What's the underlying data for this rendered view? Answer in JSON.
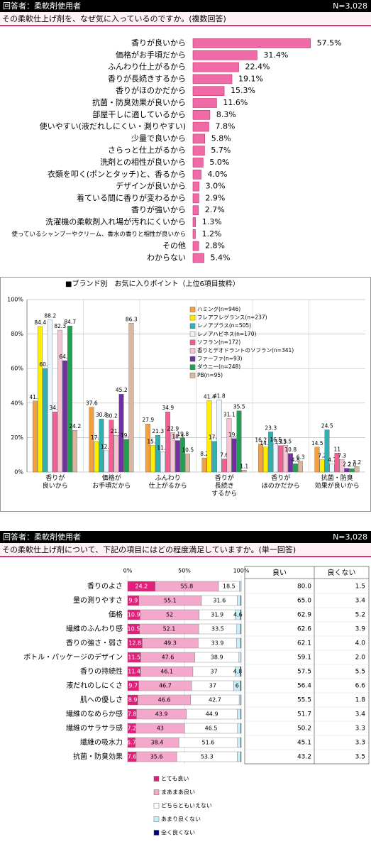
{
  "header1": {
    "respondent": "回答者：柔軟剤使用者",
    "n": "N=3,028",
    "question": "その柔軟仕上げ剤を、なぜ気に入っているのですか。(複数回答)"
  },
  "header2": {
    "respondent": "回答者：柔軟剤使用者",
    "n": "N=3,028",
    "question": "その柔軟仕上げ剤について、下記の項目にはどの程度満足していますか。(単一回答)"
  },
  "chart_data": [
    {
      "type": "hbar",
      "color": "#f06aa8",
      "categories": [
        "香りが良いから",
        "価格がお手頃だから",
        "ふんわり仕上がるから",
        "香りが長続きするから",
        "香りがほのかだから",
        "抗菌・防臭効果が良いから",
        "部屋干しに適しているから",
        "使いやすい(液だれしにくい・測りやすい)",
        "少量で良いから",
        "さらっと仕上がるから",
        "洗剤との相性が良いから",
        "衣類を叩く(ポンとタッチ)と、香るから",
        "デザインが良いから",
        "着ている間に香りが変わるから",
        "香りが強いから",
        "洗濯機の柔軟剤入れ場が汚れにくいから",
        "使っているシャンプーやクリーム、香水の香りと相性が良いから",
        "その他",
        "わからない"
      ],
      "values": [
        57.5,
        31.4,
        22.4,
        19.1,
        15.3,
        11.6,
        8.3,
        7.8,
        5.8,
        5.7,
        5.0,
        4.0,
        3.0,
        2.9,
        2.7,
        1.3,
        1.2,
        2.8,
        5.4
      ],
      "value_labels": [
        "57.5%",
        "31.4%",
        "22.4%",
        "19.1%",
        "15.3%",
        "11.6%",
        "8.3%",
        "7.8%",
        "5.8%",
        "5.7%",
        "5.0%",
        "4.0%",
        "3.0%",
        "2.9%",
        "2.7%",
        "1.3%",
        "1.2%",
        "2.8%",
        "5.4%"
      ]
    },
    {
      "type": "grouped_bar",
      "title": "■ブランド別　お気に入りポイント（上位6項目抜粋）",
      "categories": [
        "香りが\n良いから",
        "価格が\nお手頃だから",
        "ふんわり\n仕上がるから",
        "香りが\n長続き\nするから",
        "香りが\nほのかだから",
        "抗菌・防臭\n効果が良いから"
      ],
      "ylim": [
        0,
        100
      ],
      "yticks": [
        {
          "value": 0,
          "label": "0%"
        },
        {
          "value": 20,
          "label": "20%"
        },
        {
          "value": 40,
          "label": "40%"
        },
        {
          "value": 60,
          "label": "60%"
        },
        {
          "value": 80,
          "label": "80%"
        },
        {
          "value": 100,
          "label": "100%"
        }
      ],
      "grid": true,
      "legend": "top-right",
      "series": [
        {
          "name": "ハミング(n=946)",
          "color": "#f5a040",
          "values": [
            41.2,
            37.6,
            27.9,
            8.2,
            16.2,
            14.5
          ]
        },
        {
          "name": "フレアフレグランス(n=237)",
          "color": "#ffee00",
          "values": [
            84.4,
            17.7,
            15.5,
            41.4,
            14.5,
            7.2
          ]
        },
        {
          "name": "レノアプラス(n=505)",
          "color": "#30b0b0",
          "values": [
            60.1,
            30.8,
            21.3,
            17.8,
            23.3,
            24.5
          ]
        },
        {
          "name": "レノアハピネス(n=170)",
          "color": "#eaf6ff",
          "values": [
            88.2,
            12.4,
            11.8,
            41.8,
            16.5,
            4.7
          ]
        },
        {
          "name": "ソフラン(n=172)",
          "color": "#f06090",
          "values": [
            34.9,
            30.2,
            34.9,
            7.6,
            15.3,
            11.0
          ]
        },
        {
          "name": "香りとデオドラントのソフラン(n=341)",
          "color": "#f4c4d4",
          "values": [
            82.3,
            21.3,
            22.9,
            31.1,
            15.5,
            7.3
          ]
        },
        {
          "name": "ファーファ(n=93)",
          "color": "#7030a0",
          "values": [
            64.6,
            45.2,
            18.3,
            19.4,
            10.8,
            2.2
          ]
        },
        {
          "name": "ダウニー(n=248)",
          "color": "#20a050",
          "values": [
            84.7,
            19.0,
            19.8,
            35.5,
            4.8,
            2.0
          ],
          "value_labels": [
            "84.7",
            "19.0",
            "19.8",
            "35.5",
            "4.8",
            "2.0"
          ]
        },
        {
          "name": "PB(n=95)",
          "color": "#d8b8a0",
          "values": [
            24.2,
            86.3,
            10.5,
            1.1,
            6.3,
            3.2
          ]
        }
      ]
    },
    {
      "type": "stacked_hbar",
      "categories": [
        "香りのよさ",
        "量の測りやすさ",
        "価格",
        "繊維のふんわり感",
        "香りの強さ・弱さ",
        "ボトル・パッケージのデザイン",
        "香りの持続性",
        "液だれのしにくさ",
        "肌への優しさ",
        "繊維のなめらか感",
        "繊維のサラサラ感",
        "繊維の吸水力",
        "抗菌・防臭効果"
      ],
      "xlim": [
        0,
        100
      ],
      "xticks": [
        {
          "value": 0,
          "label": "0%"
        },
        {
          "value": 50,
          "label": "50%"
        },
        {
          "value": 100,
          "label": "100%"
        }
      ],
      "series": [
        {
          "name": "とても良い",
          "color": "#e0207a",
          "values": [
            24.2,
            9.9,
            10.9,
            10.5,
            12.8,
            11.5,
            11.4,
            9.7,
            8.9,
            7.8,
            7.2,
            6.7,
            7.6
          ]
        },
        {
          "name": "まあまあ良い",
          "color": "#f4a8cc",
          "values": [
            55.8,
            55.1,
            52.0,
            52.1,
            49.3,
            47.6,
            46.1,
            46.7,
            46.6,
            43.9,
            43.0,
            38.4,
            35.6
          ]
        },
        {
          "name": "どちらともいえない",
          "color": "#ffffff",
          "values": [
            18.5,
            31.6,
            31.9,
            33.5,
            33.9,
            38.9,
            37.0,
            37.0,
            42.7,
            44.9,
            46.5,
            51.6,
            53.3
          ]
        },
        {
          "name": "あまり良くない",
          "color": "#c8eef8",
          "values": [
            1.3,
            2.9,
            4.6,
            3.4,
            3.5,
            1.8,
            4.8,
            6.0,
            1.5,
            3.0,
            2.9,
            2.9,
            3.1
          ]
        },
        {
          "name": "全く良くない",
          "color": "#000080",
          "values": [
            0.2,
            0.5,
            0.6,
            0.5,
            0.5,
            0.2,
            0.7,
            0.6,
            0.3,
            0.4,
            0.4,
            0.4,
            0.4
          ]
        }
      ],
      "table": {
        "columns": [
          "良い",
          "良くない"
        ],
        "rows": [
          [
            "80.0",
            "1.5"
          ],
          [
            "65.0",
            "3.4"
          ],
          [
            "62.9",
            "5.2"
          ],
          [
            "62.6",
            "3.9"
          ],
          [
            "62.1",
            "4.0"
          ],
          [
            "59.1",
            "2.0"
          ],
          [
            "57.5",
            "5.5"
          ],
          [
            "56.4",
            "6.6"
          ],
          [
            "55.5",
            "1.8"
          ],
          [
            "51.7",
            "3.4"
          ],
          [
            "50.2",
            "3.3"
          ],
          [
            "45.1",
            "3.3"
          ],
          [
            "43.2",
            "3.5"
          ]
        ]
      }
    }
  ]
}
